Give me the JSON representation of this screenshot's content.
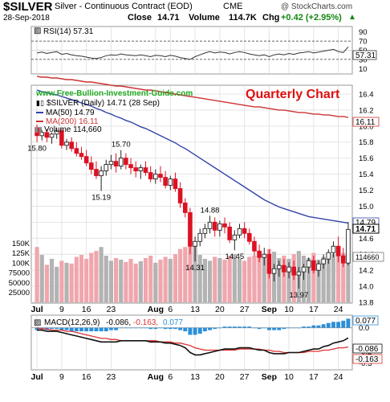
{
  "header": {
    "symbol": "$SILVER",
    "description": "Silver - Continuous Contract (EOD)",
    "exchange": "CME",
    "watermark": "@ StockCharts.com",
    "date": "28-Sep-2018",
    "close_label": "Close",
    "close_value": "14.71",
    "volume_label": "Volume",
    "volume_value": "114.7K",
    "chg_label": "Chg",
    "chg_value": "+0.42 (+2.95%)"
  },
  "site_url": "www.Free-Bullion-Investment-Guide.com",
  "annotation": "Quarterly Chart",
  "colors": {
    "up": "#222222",
    "down": "#dd1122",
    "ma50": "#3344aa",
    "ma200": "#cc3333",
    "rsi": "#333333",
    "macd": "#111111",
    "signal": "#dd3333",
    "hist": "#2b8fd8",
    "vol_up": "#b3b3b3",
    "vol_down": "#f0a6ad",
    "grid": "#e4e4e4"
  },
  "rsi_panel": {
    "legend": "RSI(14) 57.31",
    "current": "57.31",
    "levels": [
      70,
      30
    ],
    "ticks": [
      "90",
      "70",
      "50",
      "30",
      "10"
    ]
  },
  "price_panel": {
    "legend_symbol": "$SILVER (Daily) 14.71 (28 Sep)",
    "legend_ma50": "MA(50) 14.79",
    "legend_ma200": "MA(200) 16.11",
    "legend_volume": "Volume 114,660",
    "ma50_tag": "14.79",
    "ma200_tag": "16.11",
    "close_tag": "14.71",
    "volume_tag": "114660",
    "price_ticks": [
      "16.4",
      "16.2",
      "16.0",
      "15.8",
      "15.6",
      "15.4",
      "15.2",
      "15.0",
      "14.8",
      "14.6",
      "14.4",
      "14.2",
      "14.0",
      "13.8"
    ],
    "volume_ticks": [
      "150K",
      "125K",
      "100K",
      "75000",
      "50000",
      "25000"
    ],
    "price_labels": [
      "15.80",
      "15.70",
      "15.19",
      "14.88",
      "14.31",
      "14.45",
      "13.97"
    ]
  },
  "macd_panel": {
    "legend_macd": "MACD(12,26,9)",
    "legend_v1": "-0.086,",
    "legend_v2": "-0.163,",
    "legend_v3": "0.077",
    "tag_hist": "0.077",
    "tag_macd": "-0.086",
    "tag_signal": "-0.163",
    "ticks": [
      "0.0",
      "-0.2",
      "-0.3"
    ]
  },
  "x_axis": {
    "month_labels": [
      "Jul",
      "Aug",
      "Sep"
    ],
    "day_labels": [
      "9",
      "16",
      "23",
      "6",
      "13",
      "20",
      "27",
      "10",
      "17",
      "24"
    ]
  },
  "chart_data": {
    "type": "candlestick",
    "title": "$SILVER Silver - Continuous Contract (EOD) CME",
    "series_names": [
      "$SILVER (Daily)",
      "MA(50)",
      "MA(200)"
    ],
    "price_range": [
      13.8,
      16.5
    ],
    "volume_range": [
      0,
      175000
    ],
    "rsi_range": [
      0,
      100
    ],
    "macd_range": [
      -0.35,
      0.1
    ],
    "grid": true,
    "x_labels": [
      {
        "i": 0,
        "label": "Jul"
      },
      {
        "i": 5,
        "label": "9"
      },
      {
        "i": 10,
        "label": "16"
      },
      {
        "i": 15,
        "label": "23"
      },
      {
        "i": 24,
        "label": "Aug"
      },
      {
        "i": 27,
        "label": "6"
      },
      {
        "i": 32,
        "label": "13"
      },
      {
        "i": 37,
        "label": "20"
      },
      {
        "i": 42,
        "label": "27"
      },
      {
        "i": 47,
        "label": "Sep"
      },
      {
        "i": 51,
        "label": "10"
      },
      {
        "i": 56,
        "label": "17"
      },
      {
        "i": 61,
        "label": "24"
      }
    ],
    "price_annotations": [
      {
        "i": 0,
        "value": 15.8
      },
      {
        "i": 17,
        "value": 15.7
      },
      {
        "i": 13,
        "value": 15.19
      },
      {
        "i": 35,
        "value": 14.88
      },
      {
        "i": 32,
        "value": 14.31
      },
      {
        "i": 40,
        "value": 14.45
      },
      {
        "i": 53,
        "value": 13.97
      }
    ],
    "candles": [
      [
        15.98,
        16.02,
        15.8,
        15.88
      ],
      [
        15.88,
        15.95,
        15.82,
        15.92
      ],
      [
        15.92,
        15.96,
        15.8,
        15.86
      ],
      [
        15.86,
        15.92,
        15.78,
        15.9
      ],
      [
        15.9,
        15.98,
        15.84,
        15.94
      ],
      [
        15.94,
        15.97,
        15.72,
        15.76
      ],
      [
        15.76,
        15.84,
        15.7,
        15.8
      ],
      [
        15.8,
        15.86,
        15.68,
        15.72
      ],
      [
        15.72,
        15.8,
        15.62,
        15.66
      ],
      [
        15.66,
        15.74,
        15.58,
        15.62
      ],
      [
        15.62,
        15.7,
        15.5,
        15.54
      ],
      [
        15.54,
        15.62,
        15.4,
        15.46
      ],
      [
        15.46,
        15.56,
        15.34,
        15.38
      ],
      [
        15.38,
        15.5,
        15.19,
        15.44
      ],
      [
        15.44,
        15.58,
        15.38,
        15.52
      ],
      [
        15.52,
        15.64,
        15.46,
        15.56
      ],
      [
        15.56,
        15.66,
        15.42,
        15.5
      ],
      [
        15.5,
        15.7,
        15.46,
        15.6
      ],
      [
        15.6,
        15.66,
        15.46,
        15.52
      ],
      [
        15.52,
        15.6,
        15.4,
        15.48
      ],
      [
        15.48,
        15.56,
        15.36,
        15.44
      ],
      [
        15.44,
        15.52,
        15.34,
        15.48
      ],
      [
        15.48,
        15.56,
        15.38,
        15.42
      ],
      [
        15.42,
        15.5,
        15.3,
        15.34
      ],
      [
        15.34,
        15.46,
        15.28,
        15.4
      ],
      [
        15.4,
        15.5,
        15.3,
        15.36
      ],
      [
        15.36,
        15.44,
        15.22,
        15.26
      ],
      [
        15.26,
        15.38,
        15.2,
        15.34
      ],
      [
        15.34,
        15.42,
        15.18,
        15.22
      ],
      [
        15.22,
        15.3,
        14.98,
        15.04
      ],
      [
        15.04,
        15.1,
        14.86,
        14.92
      ],
      [
        14.92,
        14.98,
        14.4,
        14.5
      ],
      [
        14.5,
        14.62,
        14.31,
        14.56
      ],
      [
        14.56,
        14.72,
        14.5,
        14.66
      ],
      [
        14.66,
        14.78,
        14.6,
        14.72
      ],
      [
        14.72,
        14.88,
        14.66,
        14.8
      ],
      [
        14.8,
        14.86,
        14.62,
        14.7
      ],
      [
        14.7,
        14.82,
        14.62,
        14.78
      ],
      [
        14.78,
        14.86,
        14.66,
        14.74
      ],
      [
        14.74,
        14.8,
        14.54,
        14.58
      ],
      [
        14.58,
        14.7,
        14.45,
        14.64
      ],
      [
        14.64,
        14.78,
        14.6,
        14.72
      ],
      [
        14.72,
        14.8,
        14.6,
        14.66
      ],
      [
        14.66,
        14.72,
        14.52,
        14.56
      ],
      [
        14.56,
        14.62,
        14.38,
        14.44
      ],
      [
        14.44,
        14.52,
        14.3,
        14.36
      ],
      [
        14.36,
        14.48,
        14.26,
        14.4
      ],
      [
        14.4,
        14.46,
        14.1,
        14.16
      ],
      [
        14.16,
        14.28,
        14.06,
        14.22
      ],
      [
        14.22,
        14.32,
        14.12,
        14.26
      ],
      [
        14.26,
        14.34,
        14.12,
        14.18
      ],
      [
        14.18,
        14.3,
        14.1,
        14.24
      ],
      [
        14.24,
        14.32,
        14.08,
        14.14
      ],
      [
        14.14,
        14.24,
        13.97,
        14.18
      ],
      [
        14.18,
        14.28,
        14.08,
        14.24
      ],
      [
        14.24,
        14.36,
        14.16,
        14.32
      ],
      [
        14.32,
        14.38,
        14.16,
        14.2
      ],
      [
        14.2,
        14.32,
        14.12,
        14.28
      ],
      [
        14.28,
        14.4,
        14.22,
        14.34
      ],
      [
        14.34,
        14.46,
        14.28,
        14.42
      ],
      [
        14.42,
        14.56,
        14.36,
        14.5
      ],
      [
        14.5,
        14.62,
        14.3,
        14.38
      ],
      [
        14.38,
        14.48,
        14.24,
        14.29
      ],
      [
        14.29,
        14.8,
        14.26,
        14.71
      ]
    ],
    "volume": [
      140000,
      120000,
      95000,
      110000,
      90000,
      105000,
      100000,
      98000,
      115000,
      120000,
      110000,
      125000,
      130000,
      140000,
      118000,
      105000,
      112000,
      108000,
      102000,
      110000,
      98000,
      104000,
      112000,
      118000,
      100000,
      108000,
      115000,
      110000,
      122000,
      135000,
      140000,
      185000,
      155000,
      120000,
      110000,
      105000,
      115000,
      112000,
      108000,
      118000,
      122000,
      110000,
      105000,
      115000,
      118000,
      125000,
      118000,
      135000,
      128000,
      112000,
      118000,
      110000,
      122000,
      130000,
      118000,
      112000,
      125000,
      108000,
      115000,
      120000,
      122000,
      130000,
      125000,
      114660
    ],
    "ma50": [
      16.45,
      16.43,
      16.42,
      16.4,
      16.39,
      16.37,
      16.35,
      16.33,
      16.31,
      16.29,
      16.27,
      16.25,
      16.22,
      16.2,
      16.17,
      16.15,
      16.12,
      16.1,
      16.07,
      16.05,
      16.02,
      15.99,
      15.97,
      15.94,
      15.91,
      15.88,
      15.85,
      15.82,
      15.79,
      15.75,
      15.72,
      15.68,
      15.64,
      15.6,
      15.56,
      15.52,
      15.48,
      15.44,
      15.4,
      15.36,
      15.32,
      15.28,
      15.24,
      15.2,
      15.16,
      15.12,
      15.08,
      15.05,
      15.02,
      14.99,
      14.97,
      14.95,
      14.93,
      14.91,
      14.89,
      14.87,
      14.86,
      14.85,
      14.84,
      14.83,
      14.82,
      14.81,
      14.8,
      14.79
    ],
    "ma200": [
      16.62,
      16.61,
      16.61,
      16.6,
      16.6,
      16.59,
      16.58,
      16.58,
      16.57,
      16.56,
      16.55,
      16.55,
      16.54,
      16.53,
      16.52,
      16.51,
      16.5,
      16.5,
      16.49,
      16.48,
      16.47,
      16.46,
      16.45,
      16.45,
      16.44,
      16.43,
      16.42,
      16.41,
      16.4,
      16.39,
      16.38,
      16.37,
      16.36,
      16.35,
      16.34,
      16.33,
      16.32,
      16.31,
      16.3,
      16.29,
      16.28,
      16.27,
      16.26,
      16.25,
      16.24,
      16.24,
      16.23,
      16.22,
      16.21,
      16.2,
      16.2,
      16.19,
      16.18,
      16.17,
      16.17,
      16.16,
      16.15,
      16.15,
      16.14,
      16.14,
      16.13,
      16.12,
      16.12,
      16.11
    ],
    "rsi": [
      44,
      46,
      43,
      45,
      47,
      41,
      43,
      40,
      38,
      37,
      35,
      33,
      32,
      34,
      38,
      40,
      39,
      42,
      40,
      39,
      38,
      40,
      38,
      36,
      39,
      38,
      36,
      39,
      37,
      34,
      32,
      30,
      36,
      40,
      44,
      47,
      44,
      46,
      45,
      42,
      45,
      47,
      45,
      42,
      40,
      38,
      40,
      36,
      40,
      42,
      40,
      43,
      41,
      44,
      45,
      47,
      44,
      46,
      48,
      50,
      52,
      47,
      45,
      57.31
    ],
    "macd": [
      -0.02,
      -0.02,
      -0.03,
      -0.03,
      -0.03,
      -0.04,
      -0.05,
      -0.06,
      -0.07,
      -0.08,
      -0.09,
      -0.1,
      -0.11,
      -0.12,
      -0.12,
      -0.12,
      -0.12,
      -0.11,
      -0.11,
      -0.11,
      -0.11,
      -0.11,
      -0.11,
      -0.12,
      -0.12,
      -0.12,
      -0.13,
      -0.13,
      -0.14,
      -0.15,
      -0.17,
      -0.21,
      -0.23,
      -0.23,
      -0.22,
      -0.21,
      -0.2,
      -0.19,
      -0.18,
      -0.18,
      -0.18,
      -0.17,
      -0.17,
      -0.17,
      -0.18,
      -0.19,
      -0.19,
      -0.21,
      -0.22,
      -0.22,
      -0.22,
      -0.21,
      -0.21,
      -0.21,
      -0.2,
      -0.19,
      -0.18,
      -0.18,
      -0.16,
      -0.15,
      -0.13,
      -0.12,
      -0.11,
      -0.086
    ],
    "signal": [
      0.0,
      -0.01,
      -0.01,
      -0.02,
      -0.02,
      -0.02,
      -0.03,
      -0.03,
      -0.04,
      -0.05,
      -0.06,
      -0.07,
      -0.08,
      -0.09,
      -0.09,
      -0.1,
      -0.1,
      -0.11,
      -0.11,
      -0.11,
      -0.11,
      -0.11,
      -0.11,
      -0.11,
      -0.11,
      -0.12,
      -0.12,
      -0.12,
      -0.13,
      -0.13,
      -0.14,
      -0.15,
      -0.17,
      -0.18,
      -0.19,
      -0.19,
      -0.19,
      -0.19,
      -0.19,
      -0.19,
      -0.19,
      -0.18,
      -0.18,
      -0.18,
      -0.18,
      -0.18,
      -0.19,
      -0.19,
      -0.2,
      -0.2,
      -0.21,
      -0.21,
      -0.21,
      -0.21,
      -0.21,
      -0.2,
      -0.2,
      -0.2,
      -0.19,
      -0.19,
      -0.18,
      -0.17,
      -0.17,
      -0.163
    ]
  }
}
